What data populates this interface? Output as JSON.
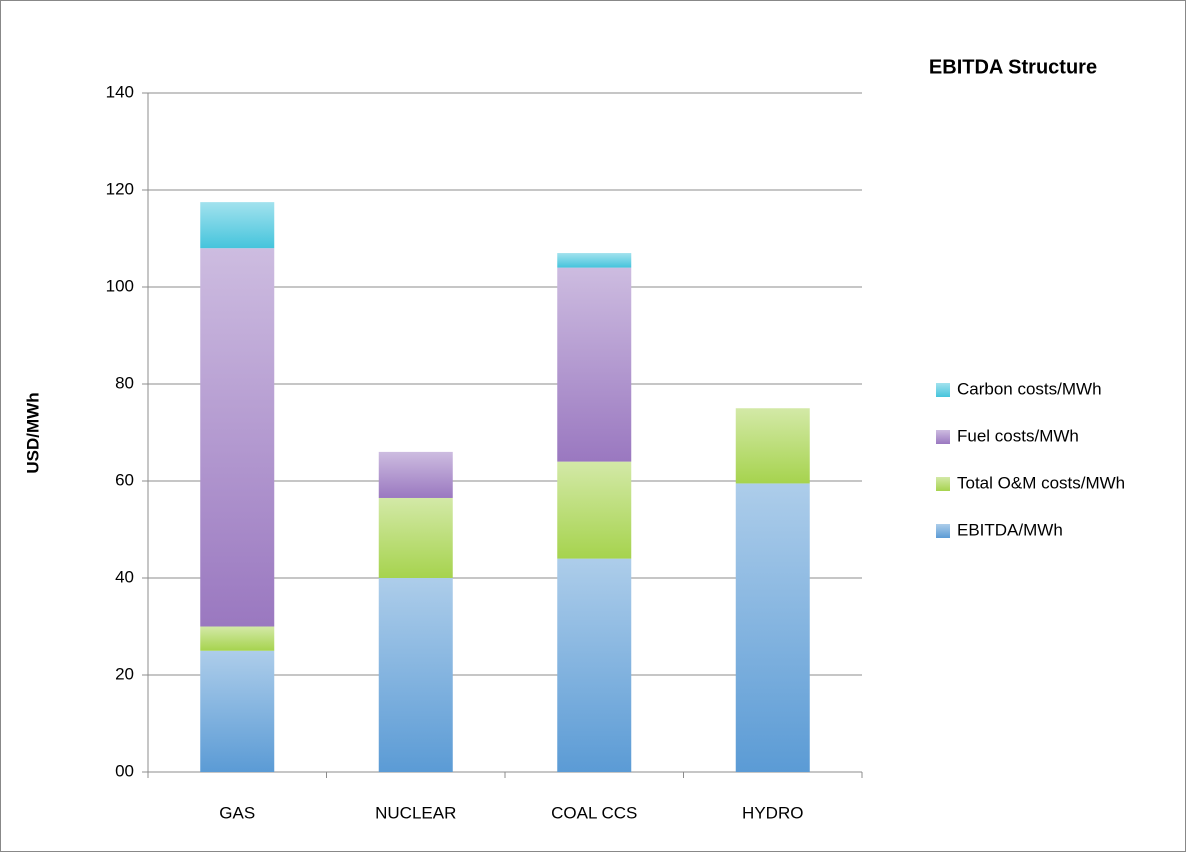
{
  "chart_data": {
    "type": "stacked_bar",
    "title": "EBITDA Structure",
    "y_label": "USD/MWh",
    "categories": [
      "GAS",
      "NUCLEAR",
      "COAL CCS",
      "HYDRO"
    ],
    "series": [
      {
        "name": "EBITDA/MWh",
        "color": "#5b9bd5",
        "values": [
          25,
          40,
          44,
          59.5
        ]
      },
      {
        "name": "Total O&M costs/MWh",
        "color": "#a6d34e",
        "values": [
          5,
          16.5,
          20,
          15.5
        ]
      },
      {
        "name": "Fuel costs/MWh",
        "color": "#9a78c0",
        "values": [
          78,
          9.5,
          40,
          null
        ]
      },
      {
        "name": "Carbon costs/MWh",
        "color": "#45c4dc",
        "values": [
          9.5,
          null,
          3,
          null
        ]
      }
    ],
    "ylim": [
      0,
      140
    ],
    "yticks": [
      {
        "value": 0,
        "label": "00"
      },
      20,
      40,
      60,
      80,
      100,
      120,
      140
    ],
    "grid": true,
    "legend": "right"
  }
}
